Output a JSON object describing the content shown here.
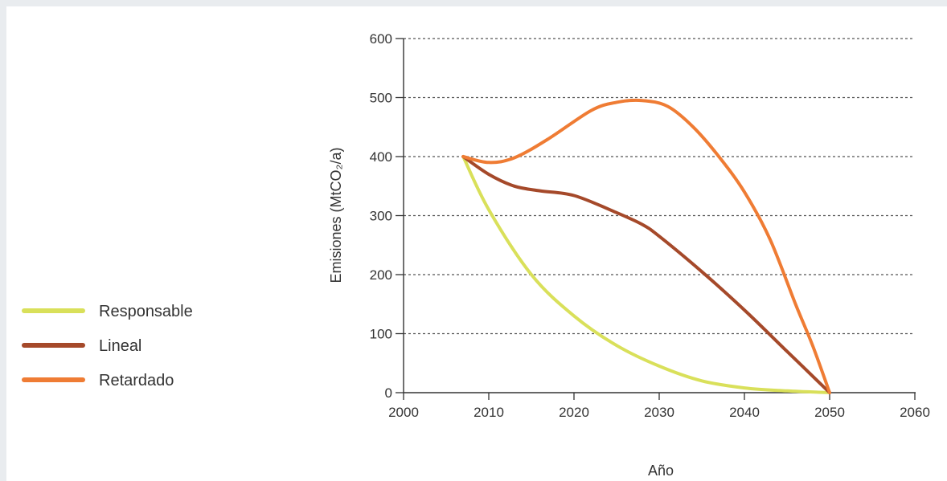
{
  "chart_data": {
    "type": "line",
    "title": "",
    "xlabel": "Año",
    "ylabel": "Emisiones (MtCO₂/a)",
    "xlim": [
      2000,
      2060
    ],
    "ylim": [
      0,
      600
    ],
    "xticks": [
      2000,
      2010,
      2020,
      2030,
      2040,
      2050,
      2060
    ],
    "yticks": [
      0,
      100,
      200,
      300,
      400,
      500,
      600
    ],
    "grid": "horizontal-dashed",
    "legend_position": "left",
    "series": [
      {
        "name": "Responsable",
        "color": "#d9e05a",
        "points": [
          [
            2007,
            400
          ],
          [
            2010,
            310
          ],
          [
            2015,
            200
          ],
          [
            2020,
            130
          ],
          [
            2025,
            80
          ],
          [
            2030,
            45
          ],
          [
            2035,
            20
          ],
          [
            2040,
            8
          ],
          [
            2045,
            3
          ],
          [
            2050,
            0
          ]
        ]
      },
      {
        "name": "Lineal",
        "color": "#a5492a",
        "points": [
          [
            2007,
            400
          ],
          [
            2010,
            370
          ],
          [
            2013,
            350
          ],
          [
            2016,
            342
          ],
          [
            2020,
            334
          ],
          [
            2025,
            305
          ],
          [
            2028,
            285
          ],
          [
            2030,
            265
          ],
          [
            2035,
            205
          ],
          [
            2040,
            140
          ],
          [
            2045,
            70
          ],
          [
            2050,
            0
          ]
        ]
      },
      {
        "name": "Retardado",
        "color": "#ef7c34",
        "points": [
          [
            2007,
            400
          ],
          [
            2010,
            390
          ],
          [
            2013,
            398
          ],
          [
            2017,
            430
          ],
          [
            2022,
            478
          ],
          [
            2025,
            492
          ],
          [
            2028,
            495
          ],
          [
            2031,
            485
          ],
          [
            2034,
            450
          ],
          [
            2037,
            400
          ],
          [
            2040,
            340
          ],
          [
            2043,
            260
          ],
          [
            2046,
            150
          ],
          [
            2048,
            80
          ],
          [
            2050,
            0
          ]
        ]
      }
    ]
  }
}
